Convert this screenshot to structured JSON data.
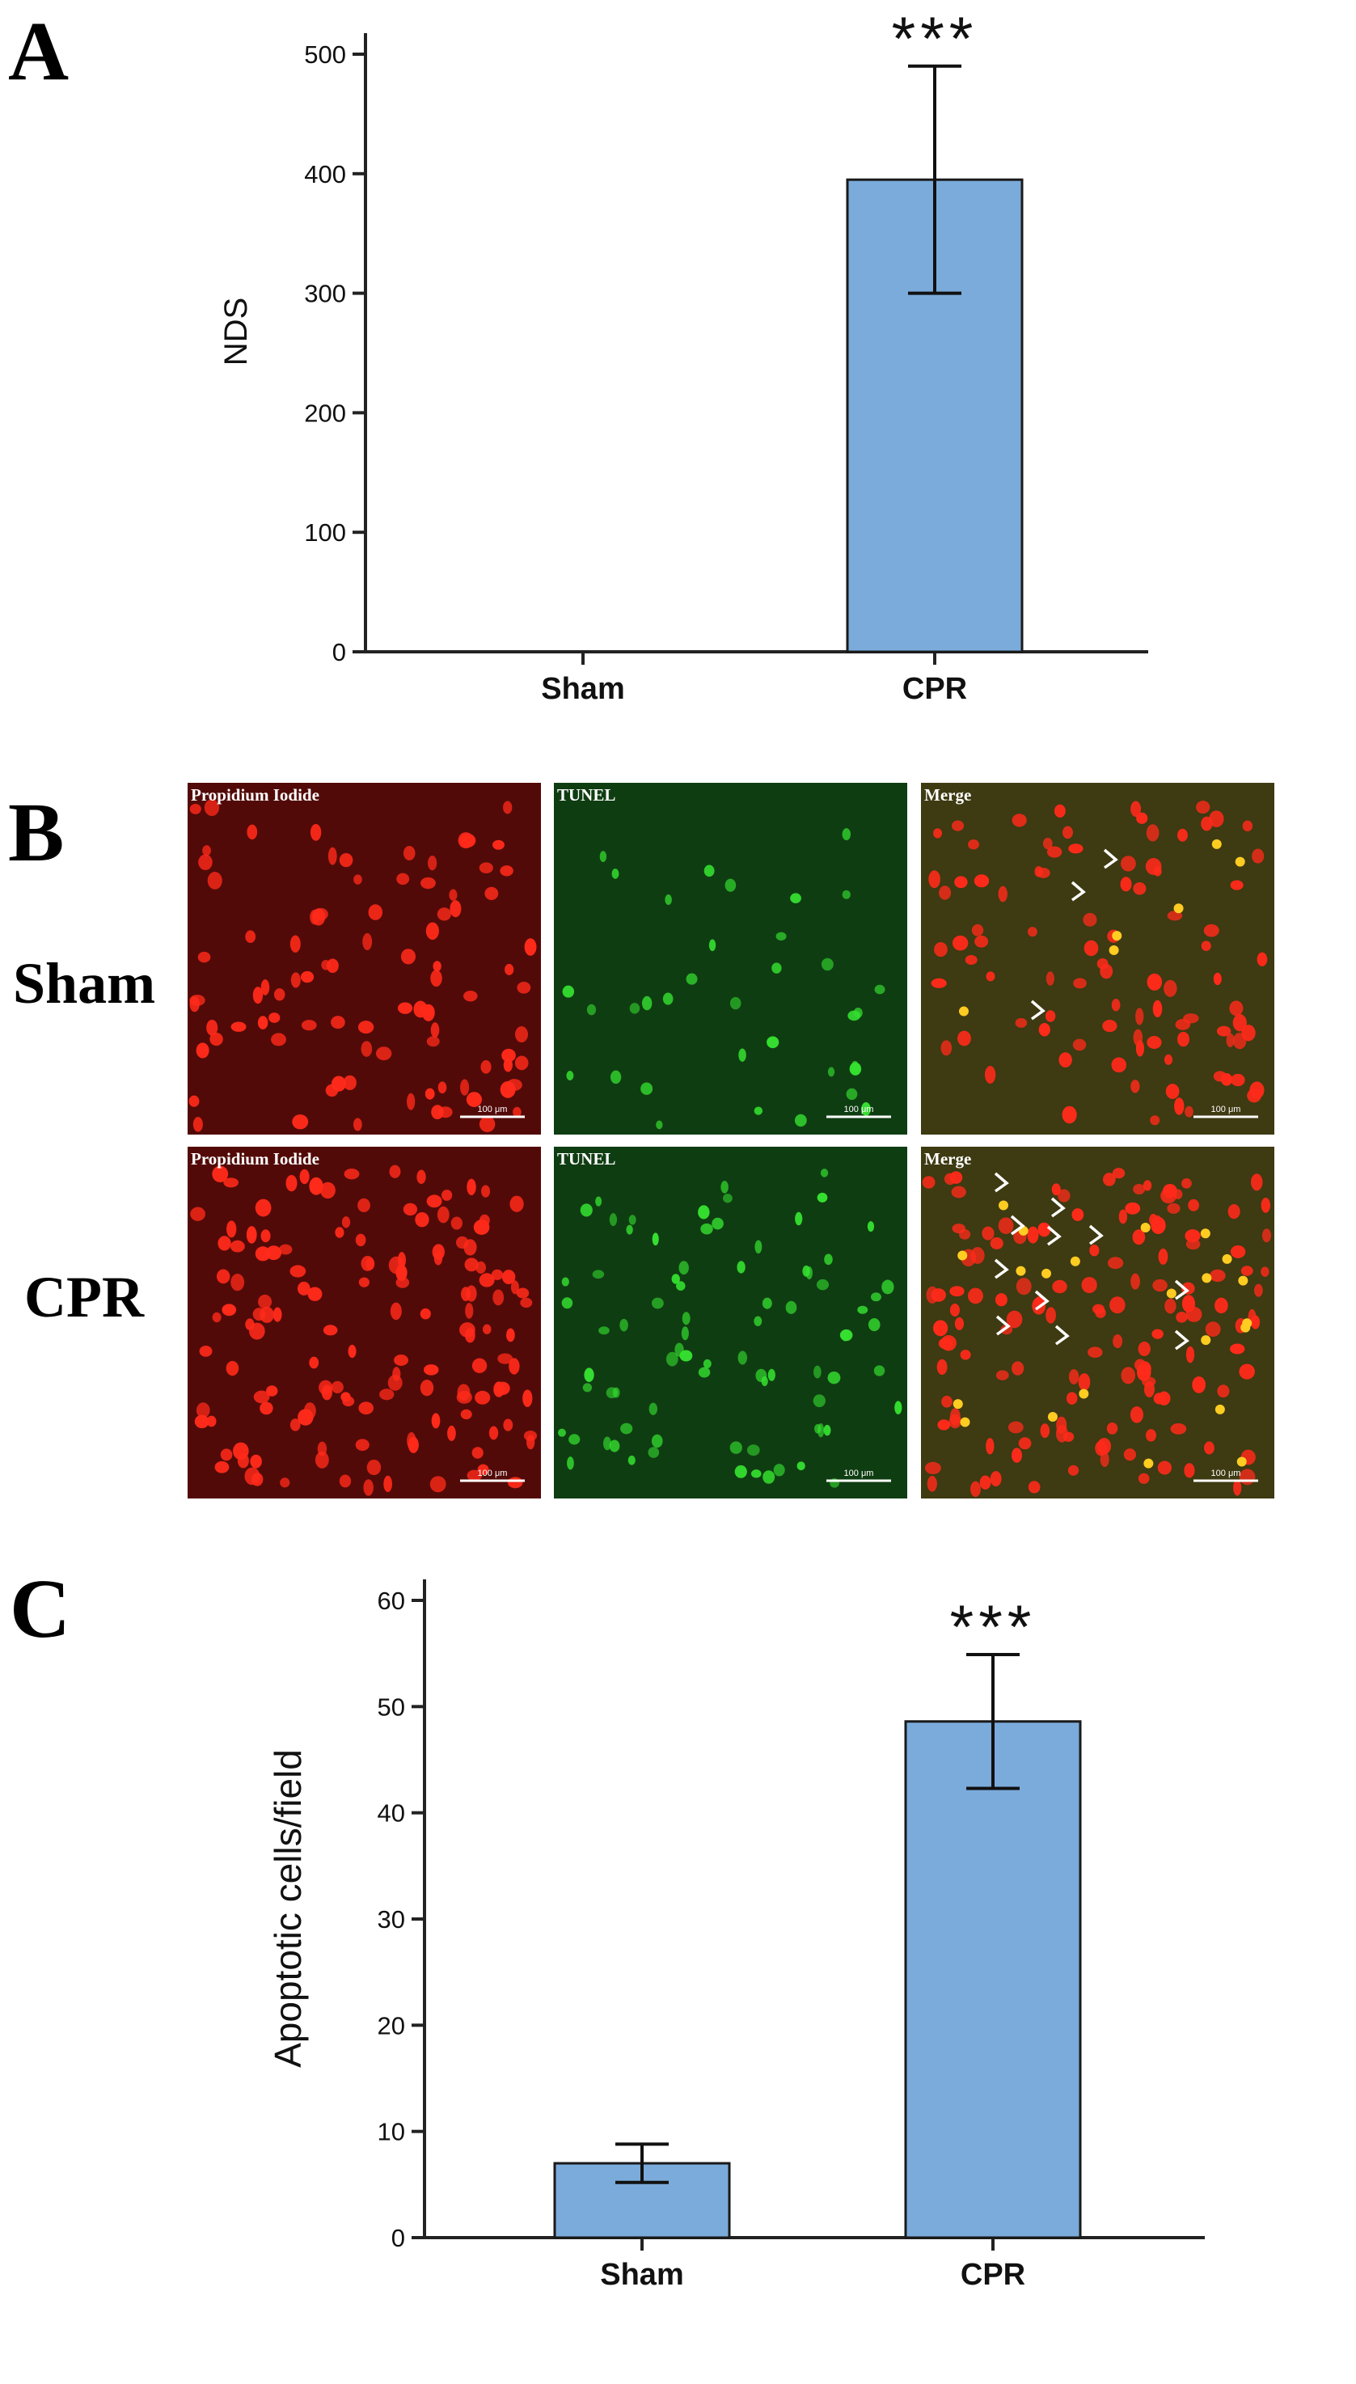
{
  "panels": {
    "a": {
      "letter": "A"
    },
    "b": {
      "letter": "B",
      "rows": [
        "Sham",
        "CPR"
      ],
      "columns": [
        "Propidium Iodide",
        "TUNEL",
        "Merge"
      ],
      "scale_bar": "100 μm",
      "colors": {
        "pi": "#ff2a1a",
        "tunel": "#35e030",
        "merge": "#ffcc22",
        "arrow": "#ffffff"
      }
    },
    "c": {
      "letter": "C"
    }
  },
  "chart_data": [
    {
      "type": "bar",
      "panel": "A",
      "categories": [
        "Sham",
        "CPR"
      ],
      "values": [
        0,
        395
      ],
      "errors": [
        0,
        95
      ],
      "significance": [
        "",
        "***"
      ],
      "xlabel": "",
      "ylabel": "NDS",
      "ylim": [
        0,
        500
      ],
      "yticks": [
        0,
        100,
        200,
        300,
        400,
        500
      ],
      "bar_color": "#7aabdb",
      "grid": false
    },
    {
      "type": "bar",
      "panel": "C",
      "categories": [
        "Sham",
        "CPR"
      ],
      "values": [
        7,
        48.6
      ],
      "errors": [
        1.8,
        6.3
      ],
      "significance": [
        "",
        "***"
      ],
      "xlabel": "",
      "ylabel": "Apoptotic cells/field",
      "ylim": [
        0,
        60
      ],
      "yticks": [
        0,
        10,
        20,
        30,
        40,
        50,
        60
      ],
      "bar_color": "#7aabdb",
      "grid": false
    }
  ]
}
